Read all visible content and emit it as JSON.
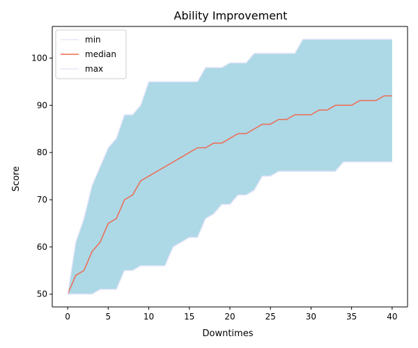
{
  "chart_data": {
    "type": "area",
    "title": "Ability Improvement",
    "xlabel": "Downtimes",
    "ylabel": "Score",
    "xlim": [
      -1.9,
      41.9
    ],
    "ylim": [
      47.3,
      106.7
    ],
    "xticks": [
      0,
      5,
      10,
      15,
      20,
      25,
      30,
      35,
      40
    ],
    "yticks": [
      50,
      60,
      70,
      80,
      90,
      100
    ],
    "grid": false,
    "legend_position": "top-left",
    "fill_color": "#add8e6",
    "x": [
      0,
      1,
      2,
      3,
      4,
      5,
      6,
      7,
      8,
      9,
      10,
      11,
      12,
      13,
      14,
      15,
      16,
      17,
      18,
      19,
      20,
      21,
      22,
      23,
      24,
      25,
      26,
      27,
      28,
      29,
      30,
      31,
      32,
      33,
      34,
      35,
      36,
      37,
      38,
      39,
      40
    ],
    "series": [
      {
        "name": "min",
        "color": "#e6e6fa",
        "values": [
          50,
          50,
          50,
          50,
          51,
          51,
          51,
          55,
          55,
          56,
          56,
          56,
          56,
          60,
          61,
          62,
          62,
          66,
          67,
          69,
          69,
          71,
          71,
          72,
          75,
          75,
          76,
          76,
          76,
          76,
          76,
          76,
          76,
          76,
          78,
          78,
          78,
          78,
          78,
          78,
          78
        ]
      },
      {
        "name": "median",
        "color": "#ee6a50",
        "values": [
          50,
          54,
          55,
          59,
          61,
          65,
          66,
          70,
          71,
          74,
          75,
          76,
          77,
          78,
          79,
          80,
          81,
          81,
          82,
          82,
          83,
          84,
          84,
          85,
          86,
          86,
          87,
          87,
          88,
          88,
          88,
          89,
          89,
          90,
          90,
          90,
          91,
          91,
          91,
          92,
          92
        ]
      },
      {
        "name": "max",
        "color": "#e6e6fa",
        "values": [
          50,
          61,
          66,
          73,
          77,
          81,
          83,
          88,
          88,
          90,
          95,
          95,
          95,
          95,
          95,
          95,
          95,
          98,
          98,
          98,
          99,
          99,
          99,
          101,
          101,
          101,
          101,
          101,
          101,
          104,
          104,
          104,
          104,
          104,
          104,
          104,
          104,
          104,
          104,
          104,
          104
        ]
      }
    ]
  }
}
